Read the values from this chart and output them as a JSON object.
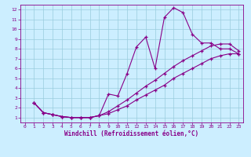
{
  "background_color": "#cceeff",
  "grid_color": "#99ccdd",
  "line_color": "#880088",
  "xlabel": "Windchill (Refroidissement éolien,°C)",
  "xlim": [
    -0.5,
    23.5
  ],
  "ylim": [
    0.5,
    12.5
  ],
  "yticks": [
    1,
    2,
    3,
    4,
    5,
    6,
    7,
    8,
    9,
    10,
    11,
    12
  ],
  "xticks": [
    0,
    1,
    2,
    3,
    4,
    5,
    6,
    7,
    8,
    9,
    10,
    11,
    12,
    13,
    14,
    15,
    16,
    17,
    18,
    19,
    20,
    21,
    22,
    23
  ],
  "series": [
    {
      "x": [
        1,
        2,
        3,
        4,
        5,
        6,
        7,
        8,
        9,
        10,
        11,
        12,
        13,
        14,
        15,
        16,
        17,
        18,
        19,
        20,
        21,
        22,
        23
      ],
      "y": [
        2.5,
        1.5,
        1.3,
        1.1,
        1.0,
        1.0,
        1.0,
        1.2,
        3.4,
        3.2,
        5.5,
        8.2,
        9.2,
        6.0,
        11.2,
        12.2,
        11.7,
        9.5,
        8.6,
        8.6,
        8.0,
        8.0,
        7.5
      ]
    },
    {
      "x": [
        1,
        2,
        3,
        4,
        5,
        6,
        7,
        8,
        9,
        10,
        11,
        12,
        13,
        14,
        15,
        16,
        17,
        18,
        19,
        20,
        21,
        22,
        23
      ],
      "y": [
        2.5,
        1.5,
        1.3,
        1.1,
        1.0,
        1.0,
        1.0,
        1.2,
        1.4,
        1.8,
        2.2,
        2.8,
        3.3,
        3.8,
        4.3,
        5.0,
        5.5,
        6.0,
        6.5,
        7.0,
        7.3,
        7.5,
        7.5
      ]
    },
    {
      "x": [
        1,
        2,
        3,
        4,
        5,
        6,
        7,
        8,
        9,
        10,
        11,
        12,
        13,
        14,
        15,
        16,
        17,
        18,
        19,
        20,
        21,
        22,
        23
      ],
      "y": [
        2.5,
        1.5,
        1.3,
        1.1,
        1.0,
        1.0,
        1.0,
        1.2,
        1.6,
        2.2,
        2.8,
        3.5,
        4.2,
        4.8,
        5.5,
        6.2,
        6.8,
        7.3,
        7.8,
        8.3,
        8.5,
        8.5,
        7.8
      ]
    }
  ]
}
